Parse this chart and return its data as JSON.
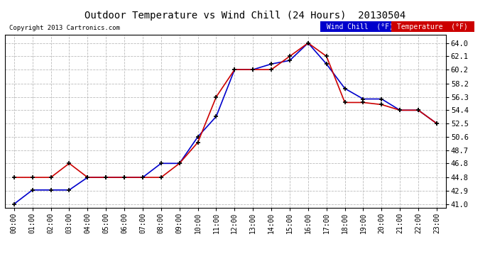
{
  "title": "Outdoor Temperature vs Wind Chill (24 Hours)  20130504",
  "copyright": "Copyright 2013 Cartronics.com",
  "background_color": "#ffffff",
  "plot_bg_color": "#ffffff",
  "grid_color": "#bbbbbb",
  "hours": [
    "00:00",
    "01:00",
    "02:00",
    "03:00",
    "04:00",
    "05:00",
    "06:00",
    "07:00",
    "08:00",
    "09:00",
    "10:00",
    "11:00",
    "12:00",
    "13:00",
    "14:00",
    "15:00",
    "16:00",
    "17:00",
    "18:00",
    "19:00",
    "20:00",
    "21:00",
    "22:00",
    "23:00"
  ],
  "temperature": [
    44.8,
    44.8,
    44.8,
    46.8,
    44.8,
    44.8,
    44.8,
    44.8,
    44.8,
    46.8,
    49.8,
    56.3,
    60.2,
    60.2,
    60.2,
    62.1,
    64.0,
    62.1,
    55.5,
    55.5,
    55.2,
    54.4,
    54.4,
    52.5
  ],
  "wind_chill": [
    41.0,
    43.0,
    43.0,
    43.0,
    44.8,
    44.8,
    44.8,
    44.8,
    46.8,
    46.8,
    50.6,
    53.5,
    60.2,
    60.2,
    61.0,
    61.5,
    64.0,
    61.0,
    57.5,
    56.0,
    56.0,
    54.4,
    54.4,
    52.5
  ],
  "temp_color": "#cc0000",
  "wind_chill_color": "#0000cc",
  "marker_color": "#000000",
  "yticks": [
    41.0,
    42.9,
    44.8,
    46.8,
    48.7,
    50.6,
    52.5,
    54.4,
    56.3,
    58.2,
    60.2,
    62.1,
    64.0
  ],
  "ylim": [
    40.5,
    65.2
  ],
  "legend_wind_bg": "#0000cc",
  "legend_temp_bg": "#cc0000",
  "legend_text_color": "#ffffff"
}
